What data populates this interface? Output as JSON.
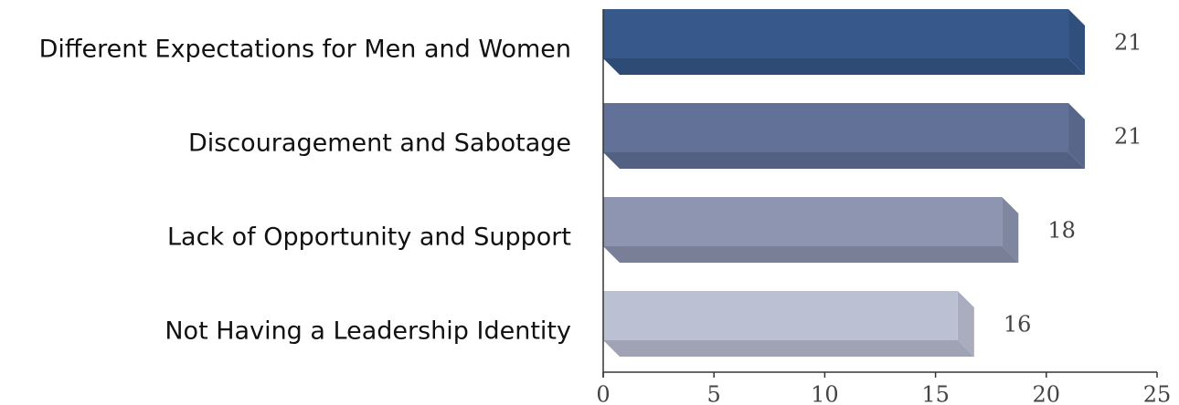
{
  "chart_data": {
    "type": "bar3d_horizontal",
    "categories": [
      "Different Expectations for Men and Women",
      "Discouragement and Sabotage",
      "Lack of Opportunity and Support",
      "Not Having a Leadership Identity"
    ],
    "values": [
      21,
      21,
      18,
      16
    ],
    "colors": [
      "#36588a",
      "#617198",
      "#8d95b1",
      "#bcc0d3"
    ],
    "xlim": [
      0,
      25
    ],
    "xticks": [
      0,
      5,
      10,
      15,
      20,
      25
    ]
  }
}
